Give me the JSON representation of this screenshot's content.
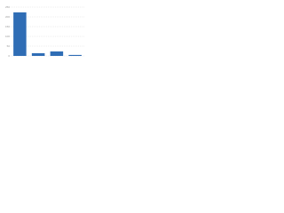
{
  "chart_data": {
    "type": "bar",
    "categories": [
      null,
      null,
      null,
      null
    ],
    "values": [
      223,
      14,
      23,
      5
    ],
    "color": "#2f6db5",
    "ylim": [
      0,
      250
    ],
    "yticks": [
      0,
      50,
      100,
      150,
      200,
      250
    ],
    "grid": true
  }
}
